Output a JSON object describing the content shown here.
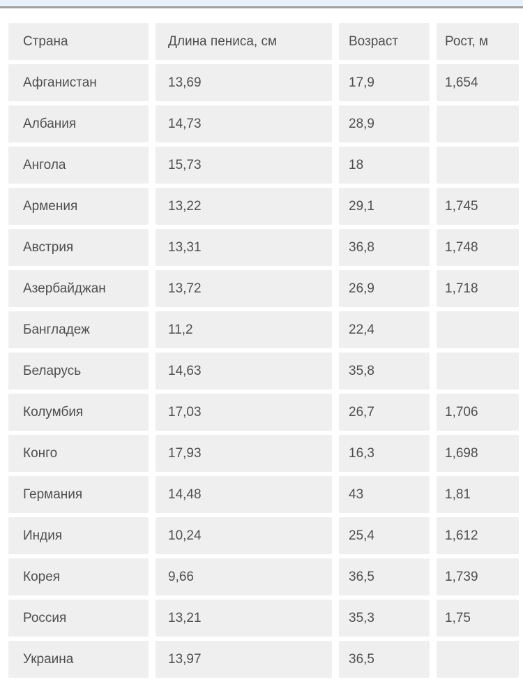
{
  "page": {
    "background_color": "#ffffff",
    "topbar_color": "#e8f1f9",
    "topbar_line_color": "#a0a0a0",
    "cell_color": "#efefef",
    "text_color": "#4f4f4f"
  },
  "table": {
    "headers": [
      "Страна",
      "Длина пениса, см",
      "Возраст",
      "Рост, м"
    ],
    "rows": [
      {
        "country": "Афганистан",
        "length": "13,69",
        "age": "17,9",
        "height": "1,654"
      },
      {
        "country": "Албания",
        "length": "14,73",
        "age": "28,9",
        "height": ""
      },
      {
        "country": "Ангола",
        "length": "15,73",
        "age": "18",
        "height": ""
      },
      {
        "country": "Армения",
        "length": "13,22",
        "age": "29,1",
        "height": "1,745"
      },
      {
        "country": "Австрия",
        "length": "13,31",
        "age": "36,8",
        "height": "1,748"
      },
      {
        "country": "Азербайджан",
        "length": "13,72",
        "age": "26,9",
        "height": "1,718"
      },
      {
        "country": "Бангладеж",
        "length": "11,2",
        "age": "22,4",
        "height": ""
      },
      {
        "country": "Беларусь",
        "length": "14,63",
        "age": "35,8",
        "height": ""
      },
      {
        "country": "Колумбия",
        "length": "17,03",
        "age": "26,7",
        "height": "1,706"
      },
      {
        "country": "Конго",
        "length": "17,93",
        "age": "16,3",
        "height": "1,698"
      },
      {
        "country": "Германия",
        "length": "14,48",
        "age": "43",
        "height": "1,81"
      },
      {
        "country": "Индия",
        "length": "10,24",
        "age": "25,4",
        "height": "1,612"
      },
      {
        "country": "Корея",
        "length": "9,66",
        "age": "36,5",
        "height": "1,739"
      },
      {
        "country": "Россия",
        "length": "13,21",
        "age": "35,3",
        "height": "1,75"
      },
      {
        "country": "Украина",
        "length": "13,97",
        "age": "36,5",
        "height": ""
      }
    ]
  }
}
